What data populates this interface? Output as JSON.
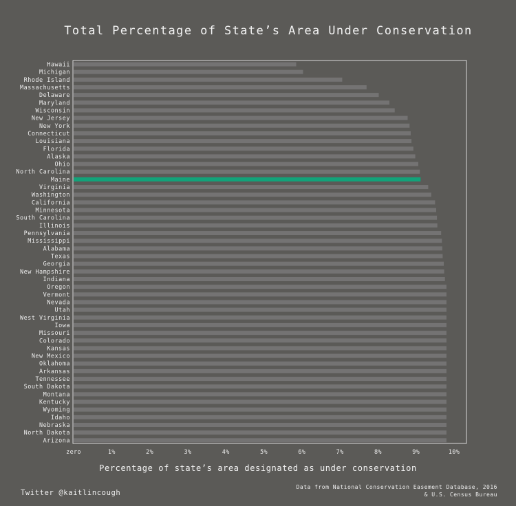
{
  "title": "Total Percentage of State’s Area Under Conservation",
  "footer": {
    "credit": "Twitter @kaitlincough",
    "source_line1": "Data from National Conservation Easement Database, 2016",
    "source_line2": "& U.S. Census Bureau"
  },
  "colors": {
    "background": "#5b5a57",
    "bar": "#747373",
    "highlight": "#12a37a",
    "frame": "#d8d8d8",
    "text": "#ededed"
  },
  "chart_data": {
    "type": "bar",
    "orientation": "horizontal",
    "xlabel": "Percentage of state’s area designated as under conservation",
    "ylabel": "",
    "xlim": [
      0,
      10
    ],
    "xticks": [
      "zero",
      "1%",
      "2%",
      "3%",
      "4%",
      "5%",
      "6%",
      "7%",
      "8%",
      "9%",
      "10%"
    ],
    "highlight": "Maine",
    "grid": false,
    "categories": [
      "Hawaii",
      "Michigan",
      "Rhode Island",
      "Massachusetts",
      "Delaware",
      "Maryland",
      "Wisconsin",
      "New Jersey",
      "New York",
      "Connecticut",
      "Louisiana",
      "Florida",
      "Alaska",
      "Ohio",
      "North Carolina",
      "Maine",
      "Virginia",
      "Washington",
      "California",
      "Minnesota",
      "South Carolina",
      "Illinois",
      "Pennsylvania",
      "Mississippi",
      "Alabama",
      "Texas",
      "Georgia",
      "New Hampshire",
      "Indiana",
      "Oregon",
      "Vermont",
      "Nevada",
      "Utah",
      "West Virginia",
      "Iowa",
      "Missouri",
      "Colorado",
      "Kansas",
      "New Mexico",
      "Oklahoma",
      "Arkansas",
      "Tennessee",
      "South Dakota",
      "Montana",
      "Kentucky",
      "Wyoming",
      "Idaho",
      "Nebraska",
      "North Dakota",
      "Arizona"
    ],
    "values": [
      5.85,
      6.03,
      7.06,
      7.7,
      8.02,
      8.3,
      8.44,
      8.78,
      8.83,
      8.86,
      8.88,
      8.93,
      8.98,
      9.06,
      9.1,
      9.12,
      9.32,
      9.4,
      9.5,
      9.53,
      9.55,
      9.56,
      9.66,
      9.68,
      9.69,
      9.7,
      9.73,
      9.74,
      9.76,
      9.8,
      9.8,
      9.8,
      9.8,
      9.8,
      9.8,
      9.8,
      9.8,
      9.8,
      9.8,
      9.8,
      9.8,
      9.8,
      9.8,
      9.8,
      9.8,
      9.8,
      9.8,
      9.8,
      9.8,
      9.8
    ]
  }
}
